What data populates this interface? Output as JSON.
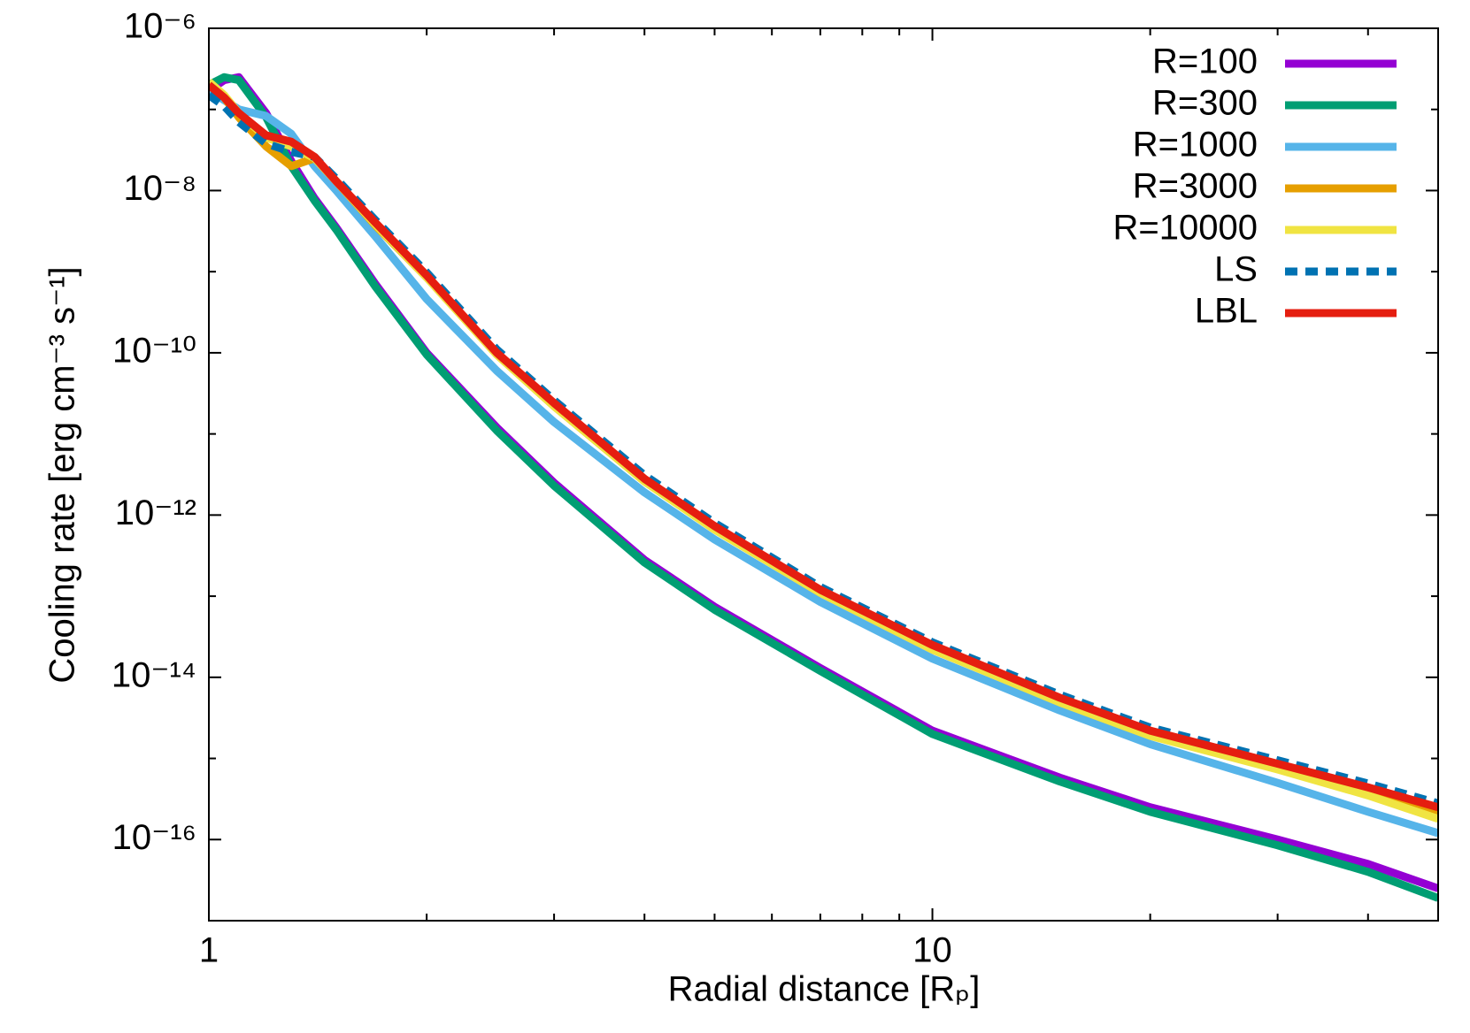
{
  "chart_data": {
    "type": "line",
    "xlabel": "Radial distance [Rₚ]",
    "ylabel": "Cooling rate [erg cm⁻³ s⁻¹]",
    "xlog": true,
    "ylog": true,
    "xlim": [
      1,
      50
    ],
    "ylim": [
      1e-17,
      1e-06
    ],
    "xticks": [
      1,
      10
    ],
    "xminorticks": [
      2,
      3,
      4,
      5,
      6,
      7,
      8,
      9,
      20,
      30,
      40,
      50
    ],
    "yticks": [
      {
        "value": 1e-16,
        "label": "10⁻¹⁶"
      },
      {
        "value": 1e-14,
        "label": "10⁻¹⁴"
      },
      {
        "value": 1e-12,
        "label": "10⁻¹²"
      },
      {
        "value": 1e-10,
        "label": "10⁻¹⁰"
      },
      {
        "value": 1e-08,
        "label": "10⁻⁸"
      },
      {
        "value": 1e-06,
        "label": "10⁻⁶"
      }
    ],
    "yminorticks": [
      1e-17,
      1e-15,
      1e-13,
      1e-11,
      1e-09,
      1e-07
    ],
    "legend": "top-right",
    "x": [
      1,
      1.05,
      1.1,
      1.2,
      1.3,
      1.4,
      1.5,
      1.7,
      2,
      2.5,
      3,
      4,
      5,
      7,
      10,
      15,
      20,
      30,
      40,
      50
    ],
    "series": [
      {
        "name": "R=100",
        "color": "#9400d3",
        "dashed": false,
        "values": [
          1.7e-07,
          2.3e-07,
          2.5e-07,
          9e-08,
          2.3e-08,
          8e-09,
          3.5e-09,
          7e-10,
          1e-10,
          1.2e-11,
          2.5e-12,
          2.8e-13,
          7.4e-14,
          1.3e-14,
          2.2e-15,
          5.8e-16,
          2.5e-16,
          1e-16,
          5e-17,
          2.5e-17
        ]
      },
      {
        "name": "R=300",
        "color": "#009e73",
        "dashed": false,
        "values": [
          2e-07,
          2.5e-07,
          2.3e-07,
          8e-08,
          2e-08,
          7.5e-09,
          3.3e-09,
          6.5e-10,
          9.5e-11,
          1.1e-11,
          2.3e-12,
          2.6e-13,
          6.8e-14,
          1.2e-14,
          2e-15,
          5.2e-16,
          2.2e-16,
          8.5e-17,
          4e-17,
          1.9e-17
        ]
      },
      {
        "name": "R=1000",
        "color": "#56b4e9",
        "dashed": false,
        "values": [
          1.7e-07,
          1.3e-07,
          1e-07,
          8.3e-08,
          5e-08,
          2e-08,
          1e-08,
          2.7e-09,
          4.6e-10,
          6e-11,
          1.4e-11,
          1.9e-12,
          5e-13,
          8.5e-14,
          1.7e-14,
          3.9e-15,
          1.5e-15,
          5e-16,
          2.2e-16,
          1.2e-16
        ]
      },
      {
        "name": "R=3000",
        "color": "#e69f00",
        "dashed": false,
        "values": [
          2e-07,
          1.4e-07,
          8e-08,
          3.5e-08,
          2e-08,
          2.5e-08,
          1.3e-08,
          3.7e-09,
          8.5e-10,
          9.5e-11,
          2.2e-11,
          2.6e-12,
          6.7e-13,
          1.1e-13,
          2.2e-14,
          5e-15,
          2e-15,
          7.5e-16,
          3.7e-16,
          2e-16
        ]
      },
      {
        "name": "R=10000",
        "color": "#f0e442",
        "dashed": false,
        "values": [
          2.2e-07,
          1.5e-07,
          9e-08,
          4.5e-08,
          3.5e-08,
          2.5e-08,
          1.3e-08,
          3.8e-09,
          8.5e-10,
          9.5e-11,
          2.2e-11,
          2.6e-12,
          6.6e-13,
          1.1e-13,
          2.2e-14,
          4.9e-15,
          1.9e-15,
          7.3e-16,
          3.5e-16,
          1.8e-16
        ]
      },
      {
        "name": "LS",
        "color": "#0072b2",
        "dashed": true,
        "values": [
          1.5e-07,
          1.1e-07,
          7e-08,
          3.8e-08,
          3e-08,
          2.6e-08,
          1.4e-08,
          4.3e-09,
          9.8e-10,
          1.1e-10,
          2.6e-11,
          3.1e-12,
          8e-13,
          1.3e-13,
          2.7e-14,
          6.1e-15,
          2.4e-15,
          9.5e-16,
          4.9e-16,
          2.8e-16
        ]
      },
      {
        "name": "LBL",
        "color": "#e51e10",
        "dashed": false,
        "values": [
          2e-07,
          1.4e-07,
          9e-08,
          4.8e-08,
          4e-08,
          2.6e-08,
          1.3e-08,
          4e-09,
          9e-10,
          1e-10,
          2.4e-11,
          2.8e-12,
          7.3e-13,
          1.2e-13,
          2.5e-14,
          5.6e-15,
          2.2e-15,
          8.6e-16,
          4.4e-16,
          2.5e-16
        ]
      }
    ]
  }
}
